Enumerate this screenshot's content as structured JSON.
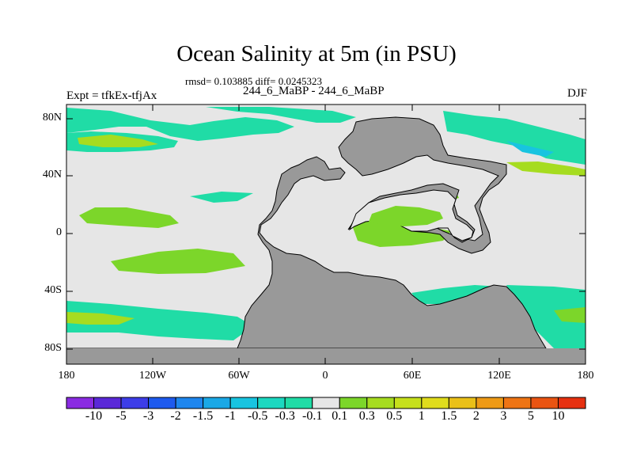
{
  "figure": {
    "title": "Ocean Salinity at 5m (in PSU)",
    "stats_line": "rmsd= 0.103885 diff= 0.0245323",
    "runs_line": "244_6_MaBP - 244_6_MaBP",
    "experiment": "Expt = tfkEx-tfjAx",
    "season": "DJF"
  },
  "axes": {
    "lat_ticks": [
      "80N",
      "40N",
      "0",
      "40S",
      "80S"
    ],
    "lon_ticks": [
      "180",
      "120W",
      "60W",
      "0",
      "60E",
      "120E",
      "180"
    ]
  },
  "legend": {
    "labels": [
      "-10",
      "-5",
      "-3",
      "-2",
      "-1.5",
      "-1",
      "-0.5",
      "-0.3",
      "-0.1",
      "0.1",
      "0.3",
      "0.5",
      "1",
      "1.5",
      "2",
      "3",
      "5",
      "10"
    ],
    "colors": [
      "#8a2be2",
      "#5a28d8",
      "#3d3de8",
      "#1e5aee",
      "#1e86ee",
      "#1aa8e6",
      "#18c4e0",
      "#1cd8c0",
      "#20dca6",
      "#e6e6e6",
      "#7cd62a",
      "#a6dc20",
      "#c6e01c",
      "#e0dc1c",
      "#eac018",
      "#ee9a16",
      "#ee7414",
      "#ea5412",
      "#e63010"
    ]
  },
  "colors": {
    "land": "#999999",
    "ocean_neutral": "#e6e6e6",
    "positive_weak": "#7cd62a",
    "positive_medium": "#a6dc20",
    "negative_weak": "#20dca6",
    "negative_medium": "#18c4e0"
  }
}
